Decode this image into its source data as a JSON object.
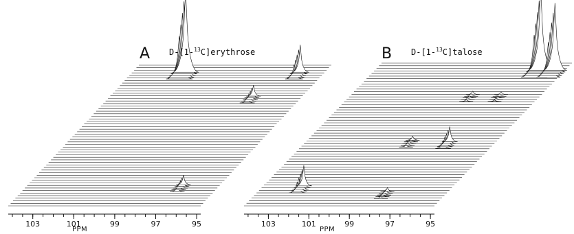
{
  "chart_data": [
    {
      "type": "stacked_spectra",
      "panel": "A",
      "title": "D-[1-13C]erythrose",
      "title_main": "D-[1-",
      "title_sup": "13",
      "title_end": "C]erythrose",
      "xlabel": "PPM",
      "x_ticks": [
        103,
        101,
        99,
        97,
        95
      ],
      "xlim": [
        104.2,
        94.8
      ],
      "peaks": [
        {
          "ppm": 101.6,
          "depth": 0.95,
          "height": 120
        },
        {
          "ppm": 97.2,
          "depth": 0.78,
          "height": 16
        },
        {
          "ppm": 96.6,
          "depth": 0.15,
          "height": 14
        },
        {
          "ppm": 96.0,
          "depth": 0.95,
          "height": 40
        }
      ]
    },
    {
      "type": "stacked_spectra",
      "panel": "B",
      "title": "D-[1-13C]talose",
      "title_main": "D-[1-",
      "title_sup": "13",
      "title_end": "C]talose",
      "xlabel": "PPM",
      "x_ticks": [
        103,
        101,
        99,
        97,
        95
      ],
      "xlim": [
        104.2,
        94.8
      ],
      "peaks": [
        {
          "ppm": 102.2,
          "depth": 0.14,
          "height": 30
        },
        {
          "ppm": 99.0,
          "depth": 0.46,
          "height": 6
        },
        {
          "ppm": 98.2,
          "depth": 0.78,
          "height": 5
        },
        {
          "ppm": 97.8,
          "depth": 0.1,
          "height": 6
        },
        {
          "ppm": 97.1,
          "depth": 0.45,
          "height": 22
        },
        {
          "ppm": 96.8,
          "depth": 0.78,
          "height": 4
        },
        {
          "ppm": 96.0,
          "depth": 0.95,
          "height": 118
        },
        {
          "ppm": 95.3,
          "depth": 0.95,
          "height": 98
        }
      ]
    }
  ]
}
